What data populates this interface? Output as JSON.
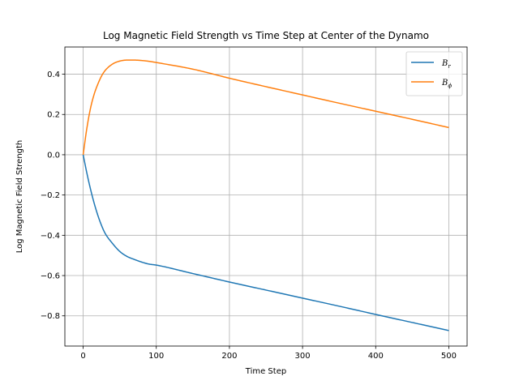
{
  "chart_data": {
    "type": "line",
    "title": "Log Magnetic Field Strength vs Time Step at Center of the Dynamo",
    "xlabel": "Time Step",
    "ylabel": "Log Magnetic Field Strength",
    "xlim": [
      -25,
      525
    ],
    "ylim": [
      -0.95,
      0.535
    ],
    "xticks": [
      0,
      100,
      200,
      300,
      400,
      500
    ],
    "yticks": [
      -0.8,
      -0.6,
      -0.4,
      -0.2,
      0.0,
      0.2,
      0.4
    ],
    "xtick_labels": [
      "0",
      "100",
      "200",
      "300",
      "400",
      "500"
    ],
    "ytick_labels": [
      "−0.8",
      "−0.6",
      "−0.4",
      "−0.2",
      "0.0",
      "0.2",
      "0.4"
    ],
    "grid": true,
    "legend_position": "top-right",
    "series": [
      {
        "name": "B_r",
        "legend_base": "B",
        "legend_sub": "r",
        "color": "#1f77b4",
        "x": [
          0,
          5,
          10,
          15,
          20,
          25,
          30,
          40,
          50,
          60,
          70,
          80,
          90,
          100,
          150,
          200,
          250,
          300,
          350,
          400,
          450,
          500
        ],
        "values": [
          0.0,
          -0.09,
          -0.17,
          -0.24,
          -0.3,
          -0.35,
          -0.39,
          -0.44,
          -0.48,
          -0.505,
          -0.52,
          -0.533,
          -0.543,
          -0.548,
          -0.59,
          -0.632,
          -0.672,
          -0.712,
          -0.752,
          -0.793,
          -0.833,
          -0.873
        ]
      },
      {
        "name": "B_phi",
        "legend_base": "B",
        "legend_sub": "ϕ",
        "color": "#ff7f0e",
        "x": [
          0,
          5,
          10,
          15,
          20,
          25,
          30,
          40,
          50,
          60,
          70,
          80,
          90,
          100,
          150,
          200,
          250,
          300,
          350,
          400,
          450,
          500
        ],
        "values": [
          0.0,
          0.13,
          0.23,
          0.3,
          0.35,
          0.39,
          0.418,
          0.45,
          0.465,
          0.47,
          0.47,
          0.468,
          0.464,
          0.458,
          0.425,
          0.38,
          0.338,
          0.297,
          0.256,
          0.216,
          0.176,
          0.135
        ]
      }
    ]
  }
}
